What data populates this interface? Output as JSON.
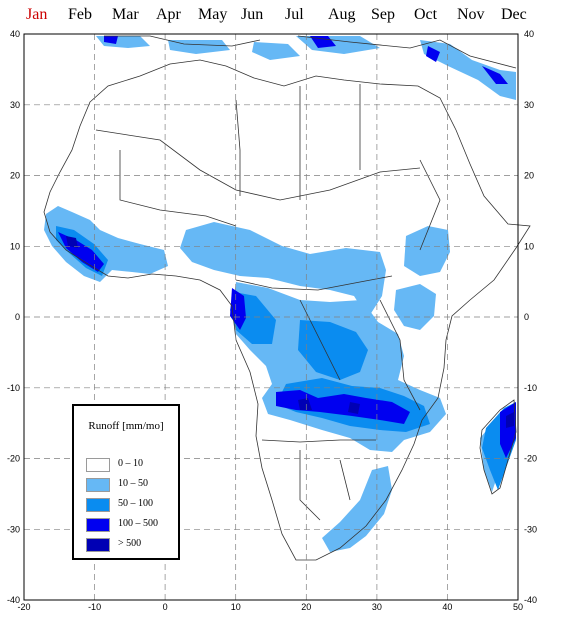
{
  "months": [
    {
      "label": "Jan",
      "active": true
    },
    {
      "label": "Feb",
      "active": false
    },
    {
      "label": "Mar",
      "active": false
    },
    {
      "label": "Apr",
      "active": false
    },
    {
      "label": "May",
      "active": false
    },
    {
      "label": "Jun",
      "active": false
    },
    {
      "label": "Jul",
      "active": false
    },
    {
      "label": "Aug",
      "active": false
    },
    {
      "label": "Sep",
      "active": false
    },
    {
      "label": "Oct",
      "active": false
    },
    {
      "label": "Nov",
      "active": false
    },
    {
      "label": "Dec",
      "active": false
    }
  ],
  "axes": {
    "lon_ticks": [
      "-20",
      "-10",
      "0",
      "10",
      "20",
      "30",
      "40",
      "50"
    ],
    "lat_ticks": [
      "40",
      "30",
      "20",
      "10",
      "0",
      "-10",
      "-20",
      "-30",
      "-40"
    ],
    "lon_range": [
      -20,
      50
    ],
    "lat_range": [
      -40,
      40
    ],
    "grid": "dashed"
  },
  "legend": {
    "title": "Runoff [mm/mo]",
    "items": [
      {
        "label": "0  –  10",
        "color": "#ffffff"
      },
      {
        "label": "10  –  50",
        "color": "#66b8f5"
      },
      {
        "label": "50  –  100",
        "color": "#0a8cf0"
      },
      {
        "label": "100  –  500",
        "color": "#0000f0"
      },
      {
        "label": "> 500",
        "color": "#0000b4"
      }
    ]
  }
}
